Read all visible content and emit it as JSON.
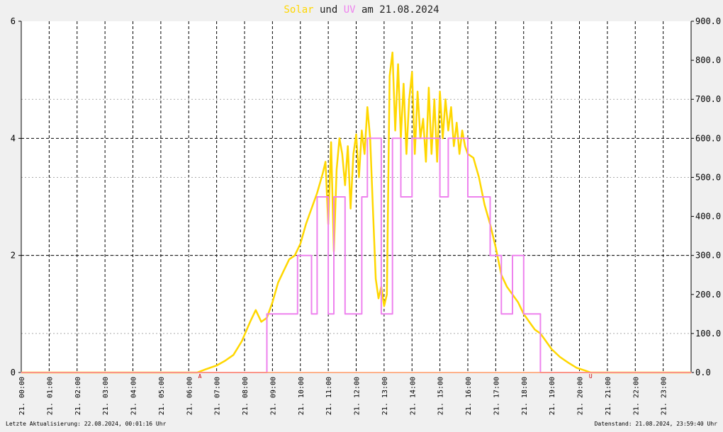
{
  "chart_data": {
    "type": "line",
    "title_parts": [
      {
        "text": "Solar",
        "color": "#ffd700"
      },
      {
        "text": " und ",
        "color": "#222222"
      },
      {
        "text": "UV",
        "color": "#ee82ee"
      },
      {
        "text": " am 21.08.2024",
        "color": "#222222"
      }
    ],
    "x_domain": [
      0,
      24
    ],
    "x_tick_labels": [
      "21. 00:00",
      "21. 01:00",
      "21. 02:00",
      "21. 03:00",
      "21. 04:00",
      "21. 05:00",
      "21. 06:00",
      "21. 07:00",
      "21. 08:00",
      "21. 09:00",
      "21. 10:00",
      "21. 11:00",
      "21. 12:00",
      "21. 13:00",
      "21. 14:00",
      "21. 15:00",
      "21. 16:00",
      "21. 17:00",
      "21. 18:00",
      "21. 19:00",
      "21. 20:00",
      "21. 21:00",
      "21. 22:00",
      "21. 23:00"
    ],
    "y_left": {
      "ylim": [
        0,
        6
      ],
      "ticks": [
        "0",
        "2",
        "4",
        "6"
      ]
    },
    "y_right": {
      "ylim": [
        0,
        900
      ],
      "ticks": [
        "0.0",
        "100.0",
        "200.0",
        "300.0",
        "400.0",
        "500.0",
        "600.0",
        "700.0",
        "800.0",
        "900.0"
      ]
    },
    "sunrise_marker": {
      "label": "A",
      "hour": 6.4
    },
    "sunset_marker": {
      "label": "U",
      "hour": 20.4
    },
    "series": [
      {
        "name": "Solar",
        "axis": "right",
        "color": "#ffd700",
        "x": [
          0,
          6.3,
          6.6,
          7.0,
          7.3,
          7.6,
          7.9,
          8.2,
          8.4,
          8.6,
          8.8,
          9.0,
          9.2,
          9.4,
          9.6,
          9.8,
          10.0,
          10.2,
          10.4,
          10.6,
          10.8,
          10.9,
          11.0,
          11.1,
          11.2,
          11.3,
          11.4,
          11.5,
          11.6,
          11.7,
          11.8,
          11.9,
          12.0,
          12.1,
          12.2,
          12.3,
          12.4,
          12.5,
          12.6,
          12.7,
          12.8,
          12.9,
          13.0,
          13.1,
          13.2,
          13.3,
          13.4,
          13.5,
          13.6,
          13.7,
          13.8,
          13.9,
          14.0,
          14.1,
          14.2,
          14.3,
          14.4,
          14.5,
          14.6,
          14.7,
          14.8,
          14.9,
          15.0,
          15.1,
          15.2,
          15.3,
          15.4,
          15.5,
          15.6,
          15.7,
          15.8,
          15.9,
          16.0,
          16.2,
          16.4,
          16.6,
          16.8,
          17.0,
          17.2,
          17.4,
          17.6,
          17.8,
          18.0,
          18.2,
          18.4,
          18.6,
          18.8,
          19.0,
          19.3,
          19.6,
          19.9,
          20.2,
          20.4,
          20.6,
          24
        ],
        "y": [
          0,
          0,
          8,
          18,
          30,
          45,
          80,
          130,
          160,
          130,
          140,
          180,
          230,
          260,
          290,
          300,
          330,
          380,
          420,
          460,
          510,
          540,
          380,
          590,
          310,
          520,
          600,
          560,
          480,
          580,
          420,
          560,
          610,
          500,
          620,
          560,
          680,
          600,
          420,
          240,
          190,
          220,
          170,
          200,
          760,
          820,
          620,
          790,
          600,
          740,
          560,
          700,
          770,
          560,
          720,
          600,
          650,
          540,
          730,
          560,
          700,
          540,
          720,
          600,
          700,
          620,
          680,
          580,
          640,
          560,
          620,
          580,
          560,
          550,
          500,
          430,
          380,
          320,
          250,
          220,
          200,
          180,
          150,
          130,
          110,
          100,
          80,
          60,
          40,
          25,
          12,
          5,
          0,
          0,
          0
        ]
      },
      {
        "name": "UV",
        "axis": "left",
        "color": "#ee82ee",
        "x": [
          0,
          6.3,
          6.4,
          8.8,
          8.8,
          9.9,
          9.9,
          10.4,
          10.4,
          10.6,
          10.6,
          11.0,
          11.0,
          11.2,
          11.2,
          11.6,
          11.6,
          12.2,
          12.2,
          12.4,
          12.4,
          12.9,
          12.9,
          13.3,
          13.3,
          13.6,
          13.6,
          14.0,
          14.0,
          15.0,
          15.0,
          15.3,
          15.3,
          16.0,
          16.0,
          16.8,
          16.8,
          17.2,
          17.2,
          17.6,
          17.6,
          18.0,
          18.0,
          18.6,
          18.6,
          19.2,
          19.2,
          20.2,
          20.2,
          24
        ],
        "y": [
          0,
          0,
          0,
          0,
          1,
          1,
          2,
          2,
          1,
          1,
          3,
          3,
          1,
          1,
          3,
          3,
          1,
          1,
          3,
          3,
          4,
          4,
          1,
          1,
          4,
          4,
          3,
          3,
          4,
          4,
          3,
          3,
          4,
          4,
          3,
          3,
          2,
          2,
          1,
          1,
          2,
          2,
          1,
          1,
          0,
          0,
          0,
          0,
          0,
          0
        ]
      }
    ],
    "footer_left": "Letzte Aktualisierung: 22.08.2024, 00:01:16 Uhr",
    "footer_right": "Datenstand: 21.08.2024, 23:59:40 Uhr"
  }
}
